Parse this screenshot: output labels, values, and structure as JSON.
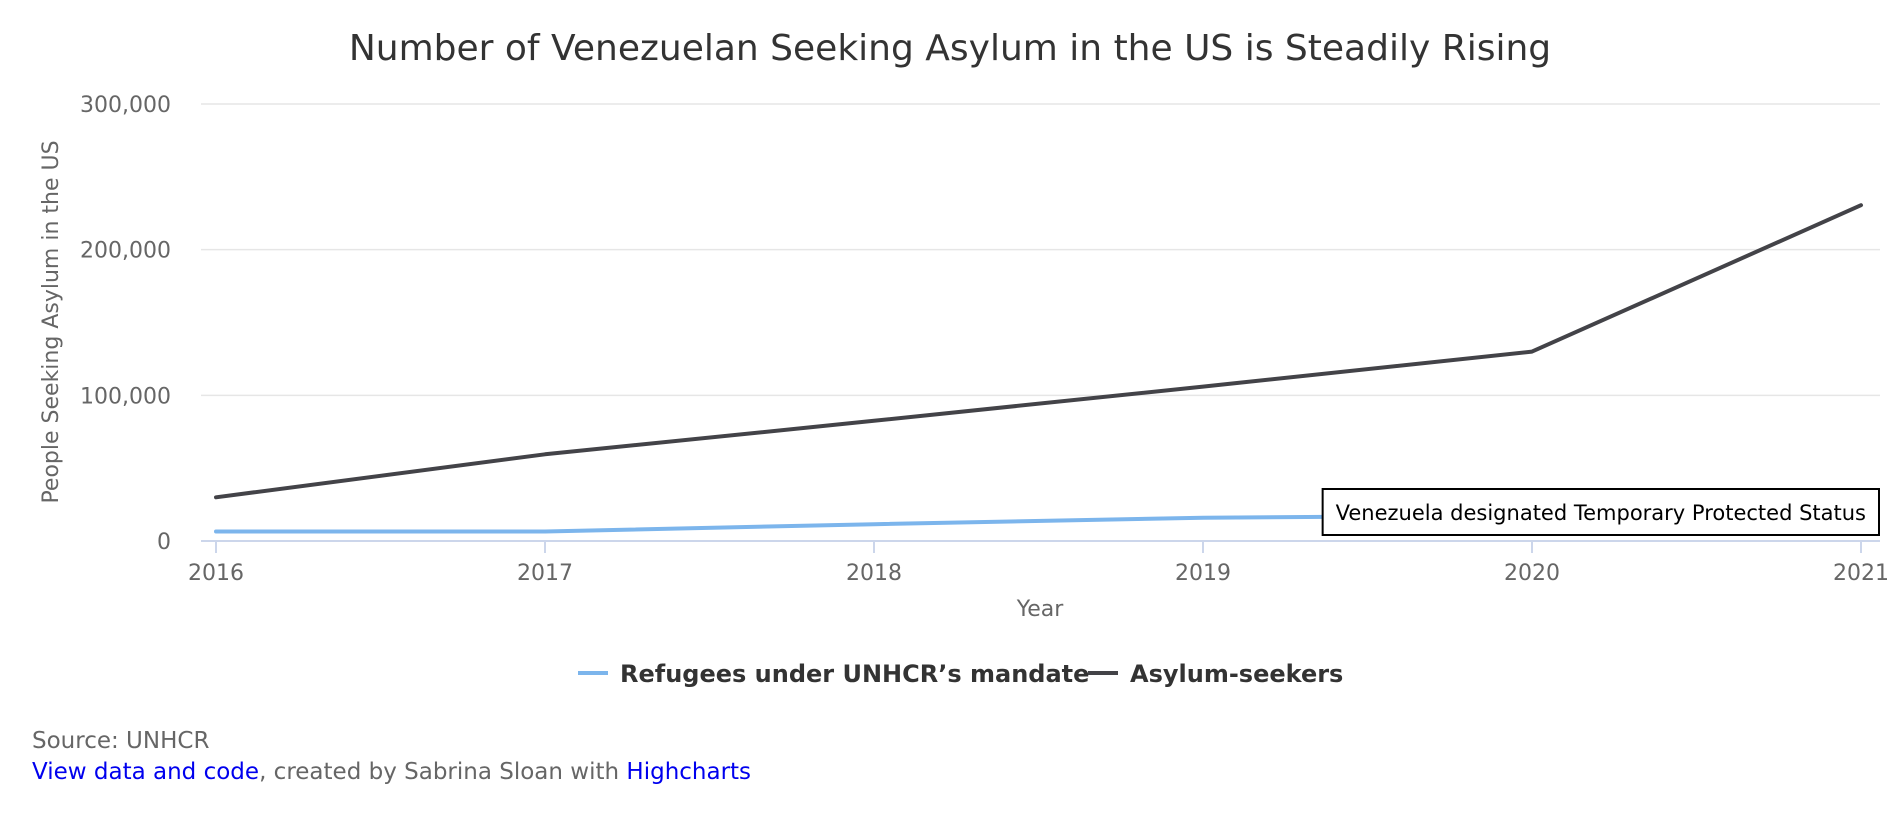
{
  "chart_data": {
    "type": "line",
    "title": "Number of Venezuelan Seeking Asylum in the US is Steadily Rising",
    "xlabel": "Year",
    "ylabel": "People Seeking Asylum in the US",
    "x": [
      2016,
      2017,
      2018,
      2019,
      2020,
      2021
    ],
    "x_tick_labels": [
      "2016",
      "2017",
      "2018",
      "2019",
      "2020",
      "2021"
    ],
    "ylim": [
      0,
      300000
    ],
    "y_ticks": [
      0,
      100000,
      200000,
      300000
    ],
    "y_tick_labels": [
      "0",
      "100,000",
      "200,000",
      "300,000"
    ],
    "grid": true,
    "legend_position": "bottom-center",
    "series": [
      {
        "name": "Refugees under UNHCR’s mandate",
        "color": "#7cb5ec",
        "values": [
          6500,
          6500,
          11500,
          16000,
          17500,
          null
        ]
      },
      {
        "name": "Asylum-seekers",
        "color": "#434348",
        "values": [
          30000,
          59500,
          82500,
          106000,
          130000,
          230500
        ]
      }
    ],
    "annotations": [
      {
        "text": "Venezuela designated Temporary Protected Status",
        "x": 2020,
        "y": 19000
      }
    ]
  },
  "credits": {
    "source": "Source: UNHCR",
    "link1": "View data and code",
    "middle": ", created by Sabrina Sloan with ",
    "link2": "Highcharts"
  }
}
